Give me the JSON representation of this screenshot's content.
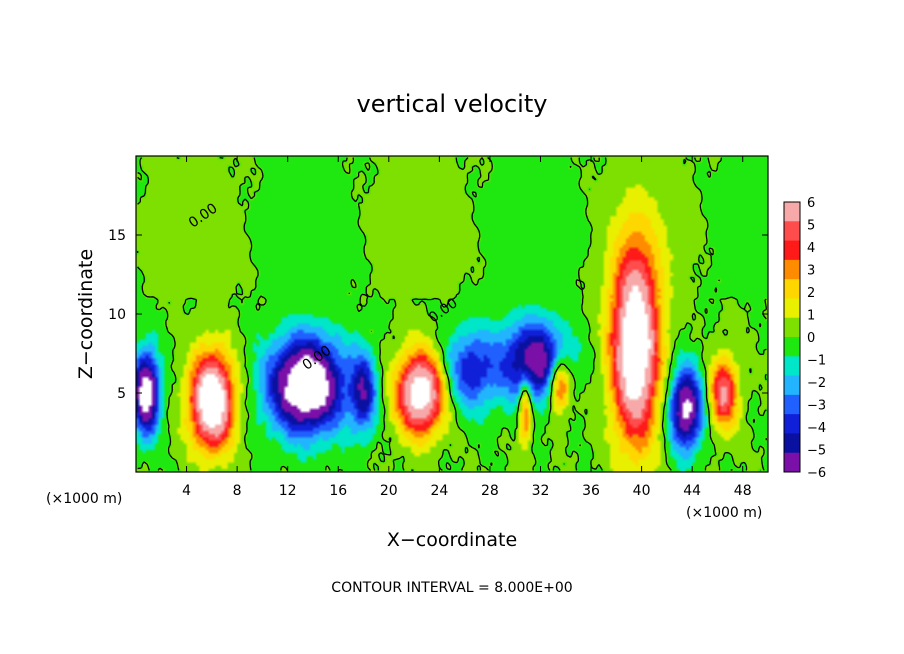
{
  "chart_data": {
    "type": "heatmap",
    "title": "vertical velocity",
    "xlabel": "X−coordinate",
    "ylabel": "Z−coordinate",
    "x_unit": "(×1000 m)",
    "y_unit": "(×1000 m)",
    "xlim": [
      0,
      50
    ],
    "ylim": [
      0,
      20
    ],
    "x_ticks": [
      4,
      8,
      12,
      16,
      20,
      24,
      28,
      32,
      36,
      40,
      44,
      48
    ],
    "y_ticks": [
      5,
      10,
      15
    ],
    "colorbar": {
      "levels": [
        "6",
        "5",
        "4",
        "3",
        "2",
        "1",
        "0",
        "−1",
        "−2",
        "−3",
        "−4",
        "−5",
        "−6"
      ],
      "colors": [
        "#f7a8a8",
        "#ff4d4d",
        "#ff1a1a",
        "#ff8c00",
        "#ffd700",
        "#e8f000",
        "#7ee000",
        "#1ee80f",
        "#00e6c8",
        "#22b4ff",
        "#2060ff",
        "#1020d8",
        "#0a10a0",
        "#7a10a8"
      ]
    },
    "features": [
      {
        "kind": "updraft",
        "x": 6,
        "z": 4.5,
        "rx": 2.0,
        "rz": 3.5,
        "strength": 1.0
      },
      {
        "kind": "updraft",
        "x": 22.5,
        "z": 5.0,
        "rx": 2.2,
        "rz": 3.0,
        "strength": 0.9
      },
      {
        "kind": "updraft",
        "x": 39.5,
        "z": 8.0,
        "rx": 2.2,
        "rz": 7.0,
        "strength": 1.0
      },
      {
        "kind": "updraft",
        "x": 46.5,
        "z": 5.0,
        "rx": 1.3,
        "rz": 2.6,
        "strength": 0.6
      },
      {
        "kind": "updraft",
        "x": 33.5,
        "z": 5.5,
        "rx": 1.0,
        "rz": 2.0,
        "strength": 0.6
      },
      {
        "kind": "updraft",
        "x": 30.8,
        "z": 4.0,
        "rx": 0.6,
        "rz": 2.5,
        "strength": 0.5
      },
      {
        "kind": "downdraft",
        "x": 13.5,
        "z": 5.5,
        "rx": 3.5,
        "rz": 3.5,
        "strength": 1.0
      },
      {
        "kind": "downdraft",
        "x": 31.5,
        "z": 7.0,
        "rx": 3.0,
        "rz": 3.0,
        "strength": 0.7
      },
      {
        "kind": "downdraft",
        "x": 0.8,
        "z": 5.0,
        "rx": 1.2,
        "rz": 3.0,
        "strength": 0.9
      },
      {
        "kind": "downdraft",
        "x": 43.5,
        "z": 4.0,
        "rx": 1.5,
        "rz": 3.0,
        "strength": 0.8
      },
      {
        "kind": "downdraft",
        "x": 18.0,
        "z": 5.0,
        "rx": 1.2,
        "rz": 3.0,
        "strength": 0.5
      },
      {
        "kind": "downdraft",
        "x": 26.5,
        "z": 6.5,
        "rx": 2.5,
        "rz": 3.0,
        "strength": 0.45
      }
    ],
    "contour_label": "0.00",
    "footer": "CONTOUR INTERVAL = 8.000E+00"
  }
}
